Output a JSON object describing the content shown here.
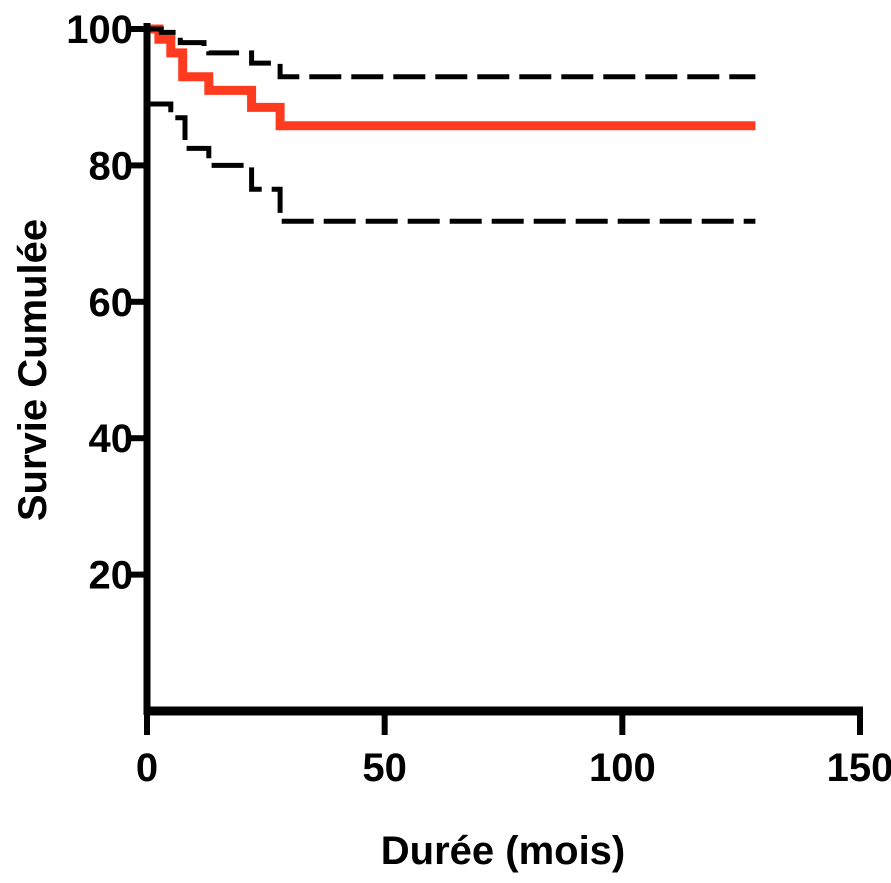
{
  "chart_data": {
    "type": "line",
    "title": "",
    "xlabel": "Durée (mois)",
    "ylabel": "Survie Cumulée",
    "xlim": [
      0,
      150
    ],
    "ylim": [
      0,
      100
    ],
    "x_ticks": [
      0,
      50,
      100,
      150
    ],
    "x_tick_labels": [
      "0",
      "50",
      "100",
      "150"
    ],
    "y_ticks": [
      20,
      40,
      60,
      80,
      100
    ],
    "y_tick_labels": [
      "20",
      "40",
      "60",
      "80",
      "100"
    ],
    "grid": false,
    "step": true,
    "series": [
      {
        "role": "survival",
        "color": "#ff3b1f",
        "dashed": false,
        "points": [
          [
            0,
            100
          ],
          [
            2.5,
            100
          ],
          [
            2.5,
            98.5
          ],
          [
            5,
            98.5
          ],
          [
            5,
            96.5
          ],
          [
            7.5,
            96.5
          ],
          [
            7.5,
            93
          ],
          [
            13,
            93
          ],
          [
            13,
            91
          ],
          [
            22,
            91
          ],
          [
            22,
            88.5
          ],
          [
            28,
            88.5
          ],
          [
            28,
            85.8
          ],
          [
            128,
            85.8
          ]
        ]
      },
      {
        "role": "upper-ci",
        "color": "#000000",
        "dashed": true,
        "points": [
          [
            0,
            100
          ],
          [
            3,
            100
          ],
          [
            3,
            99.5
          ],
          [
            7,
            99.5
          ],
          [
            7,
            98
          ],
          [
            12,
            98
          ],
          [
            12,
            97.5
          ],
          [
            13,
            97.5
          ],
          [
            13,
            96.5
          ],
          [
            22,
            96.5
          ],
          [
            22,
            95
          ],
          [
            28,
            95
          ],
          [
            28,
            93
          ],
          [
            128,
            93
          ]
        ]
      },
      {
        "role": "lower-ci",
        "color": "#000000",
        "dashed": true,
        "points": [
          [
            0,
            89
          ],
          [
            5,
            89
          ],
          [
            5,
            87
          ],
          [
            8,
            87
          ],
          [
            8,
            82.5
          ],
          [
            13,
            82.5
          ],
          [
            13,
            80
          ],
          [
            22,
            80
          ],
          [
            22,
            76.5
          ],
          [
            28,
            76.5
          ],
          [
            28,
            71.8
          ],
          [
            128,
            71.8
          ]
        ]
      }
    ]
  }
}
